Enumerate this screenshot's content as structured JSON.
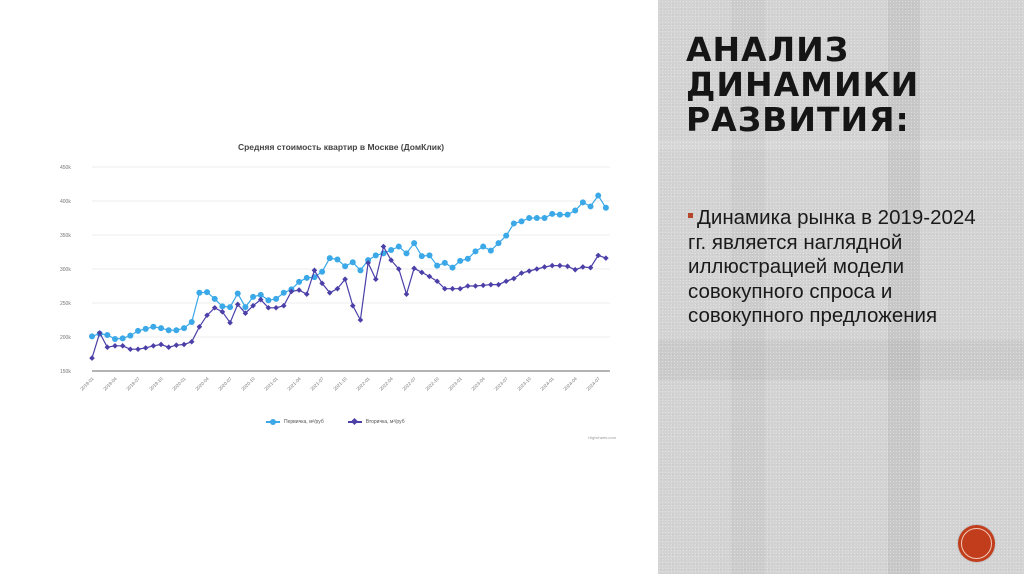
{
  "slide": {
    "heading_lines": [
      "АНАЛИЗ",
      "ДИНАМИКИ",
      "РАЗВИТИЯ:"
    ],
    "bullet_text": "Динамика рынка в 2019-2024 гг. является наглядной иллюстрацией модели совокупного спроса и совокупного предложения",
    "bullet_color": "#b5462c",
    "nav_button_color": "#c23d1c",
    "panel_color": "#d3d3d3"
  },
  "chart_data": {
    "type": "line",
    "title": "Средняя стоимость квартир в Москве (ДомКлик)",
    "xlabel": "",
    "ylabel": "",
    "ylim": [
      150000,
      450000
    ],
    "y_ticks": [
      "150k",
      "200k",
      "250k",
      "300k",
      "350k",
      "400k",
      "450k"
    ],
    "x_tick_labels": [
      "2019-01",
      "2019-04",
      "2019-07",
      "2019-10",
      "2020-01",
      "2020-04",
      "2020-07",
      "2020-10",
      "2021-01",
      "2021-04",
      "2021-07",
      "2021-10",
      "2022-01",
      "2022-04",
      "2022-07",
      "2022-10",
      "2023-01",
      "2023-04",
      "2023-07",
      "2023-10",
      "2024-01",
      "2024-04",
      "2024-07"
    ],
    "x": [
      "2019-01",
      "2019-02",
      "2019-03",
      "2019-04",
      "2019-05",
      "2019-06",
      "2019-07",
      "2019-08",
      "2019-09",
      "2019-10",
      "2019-11",
      "2019-12",
      "2020-01",
      "2020-02",
      "2020-03",
      "2020-04",
      "2020-05",
      "2020-06",
      "2020-07",
      "2020-08",
      "2020-09",
      "2020-10",
      "2020-11",
      "2020-12",
      "2021-01",
      "2021-02",
      "2021-03",
      "2021-04",
      "2021-05",
      "2021-06",
      "2021-07",
      "2021-08",
      "2021-09",
      "2021-10",
      "2021-11",
      "2021-12",
      "2022-01",
      "2022-02",
      "2022-03",
      "2022-04",
      "2022-05",
      "2022-06",
      "2022-07",
      "2022-08",
      "2022-09",
      "2022-10",
      "2022-11",
      "2022-12",
      "2023-01",
      "2023-02",
      "2023-03",
      "2023-04",
      "2023-05",
      "2023-06",
      "2023-07",
      "2023-08",
      "2023-09",
      "2023-10",
      "2023-11",
      "2023-12",
      "2024-01",
      "2024-02",
      "2024-03",
      "2024-04",
      "2024-05",
      "2024-06",
      "2024-07",
      "2024-08"
    ],
    "series": [
      {
        "name": "Первичка, м²/руб",
        "color": "#3ba8e8",
        "marker": "circle",
        "values": [
          201000,
          205000,
          203000,
          197000,
          198000,
          202000,
          209000,
          212000,
          215000,
          213000,
          210000,
          210000,
          213000,
          222000,
          265000,
          266000,
          256000,
          245000,
          244000,
          264000,
          244000,
          259000,
          262000,
          254000,
          256000,
          265000,
          270000,
          281000,
          287000,
          288000,
          296000,
          316000,
          314000,
          304000,
          310000,
          298000,
          313000,
          320000,
          323000,
          328000,
          333000,
          323000,
          338000,
          319000,
          320000,
          305000,
          309000,
          302000,
          312000,
          315000,
          326000,
          333000,
          327000,
          338000,
          349000,
          367000,
          370000,
          375000,
          375000,
          375000,
          381000,
          380000,
          380000,
          386000,
          398000,
          392000,
          408000,
          390000
        ]
      },
      {
        "name": "Вторичка, м²/руб",
        "color": "#4b3fa8",
        "marker": "diamond",
        "values": [
          169000,
          206000,
          185000,
          187000,
          187000,
          182000,
          182000,
          184000,
          187000,
          189000,
          185000,
          188000,
          189000,
          193000,
          215000,
          232000,
          243000,
          237000,
          221000,
          248000,
          235000,
          246000,
          255000,
          243000,
          243000,
          246000,
          267000,
          269000,
          263000,
          298000,
          279000,
          265000,
          271000,
          285000,
          246000,
          225000,
          309000,
          285000,
          333000,
          313000,
          300000,
          263000,
          301000,
          295000,
          289000,
          282000,
          271000,
          271000,
          271000,
          275000,
          275000,
          276000,
          277000,
          277000,
          282000,
          286000,
          294000,
          297000,
          300000,
          303000,
          305000,
          305000,
          304000,
          299000,
          303000,
          302000,
          320000,
          316000
        ]
      }
    ],
    "grid": true,
    "legend_position": "bottom",
    "credit": "Highcharts.com"
  }
}
